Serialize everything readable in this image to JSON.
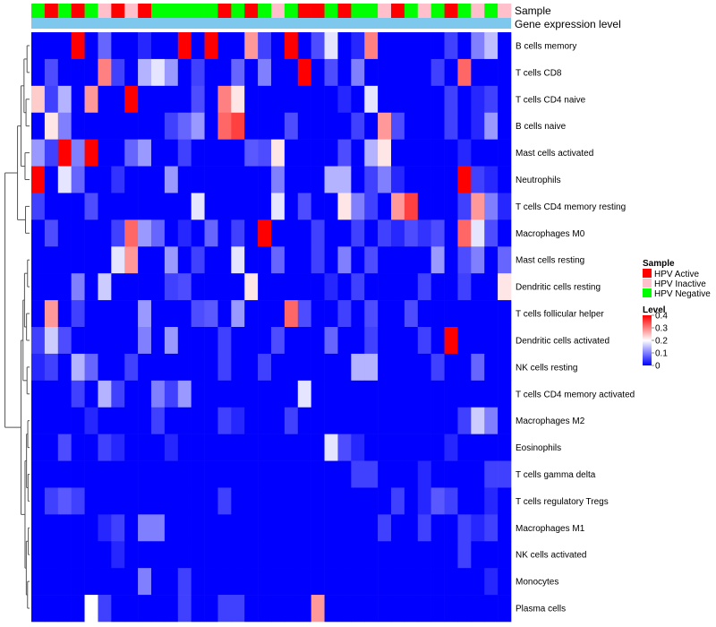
{
  "chart_data": {
    "type": "heatmap",
    "annotation_rows": {
      "sample_label": "Sample",
      "gene_label": "Gene expression level"
    },
    "sample_groups": [
      "HPV Active",
      "HPV Inactive",
      "HPV Negative"
    ],
    "sample_colors": [
      "#ff0000",
      "#ffc0cb",
      "#00ff00"
    ],
    "sample_annotation": [
      2,
      0,
      2,
      0,
      2,
      1,
      0,
      1,
      0,
      2,
      2,
      2,
      2,
      2,
      0,
      2,
      0,
      2,
      1,
      2,
      0,
      0,
      2,
      0,
      2,
      2,
      1,
      0,
      2,
      1,
      2,
      0,
      2,
      1,
      2,
      1
    ],
    "gene_level_color": "#7ec8ee",
    "rows": [
      "B cells memory",
      "T cells CD8",
      "T cells CD4 naive",
      "B cells naive",
      "Mast cells activated",
      "Neutrophils",
      "T cells CD4 memory resting",
      "Macrophages M0",
      "Mast cells resting",
      "Dendritic cells resting",
      "T cells follicular helper",
      "Dendritic cells activated",
      "NK cells resting",
      "T cells CD4 memory activated",
      "Macrophages M2",
      "Eosinophils",
      "T cells gamma delta",
      "T cells regulatory  Tregs",
      "Macrophages M1",
      "NK cells activated",
      "Monocytes",
      "Plasma cells"
    ],
    "values": [
      [
        0.0,
        0.0,
        0.0,
        0.4,
        0.0,
        0.08,
        0.0,
        0.0,
        0.03,
        0.0,
        0.0,
        0.4,
        0.0,
        0.4,
        0.0,
        0.0,
        0.28,
        0.05,
        0.0,
        0.4,
        0.0,
        0.06,
        0.18,
        0.0,
        0.03,
        0.3,
        0.0,
        0.0,
        0.0,
        0.0,
        0.0,
        0.05,
        0.0,
        0.1,
        0.15,
        0.0
      ],
      [
        0.0,
        0.06,
        0.0,
        0.0,
        0.0,
        0.3,
        0.05,
        0.0,
        0.14,
        0.18,
        0.12,
        0.0,
        0.05,
        0.0,
        0.0,
        0.08,
        0.0,
        0.1,
        0.0,
        0.0,
        0.4,
        0.0,
        0.06,
        0.0,
        0.1,
        0.0,
        0.0,
        0.0,
        0.0,
        0.0,
        0.05,
        0.0,
        0.32,
        0.0,
        0.0,
        0.0
      ],
      [
        0.24,
        0.05,
        0.14,
        0.0,
        0.28,
        0.0,
        0.0,
        0.4,
        0.0,
        0.0,
        0.0,
        0.0,
        0.06,
        0.0,
        0.3,
        0.22,
        0.0,
        0.0,
        0.0,
        0.0,
        0.0,
        0.0,
        0.0,
        0.03,
        0.0,
        0.18,
        0.0,
        0.0,
        0.0,
        0.0,
        0.0,
        0.05,
        0.0,
        0.03,
        0.05,
        0.0
      ],
      [
        0.0,
        0.22,
        0.1,
        0.0,
        0.0,
        0.0,
        0.0,
        0.0,
        0.0,
        0.0,
        0.05,
        0.08,
        0.12,
        0.0,
        0.32,
        0.35,
        0.0,
        0.0,
        0.0,
        0.06,
        0.0,
        0.0,
        0.0,
        0.0,
        0.05,
        0.0,
        0.28,
        0.06,
        0.0,
        0.0,
        0.0,
        0.05,
        0.0,
        0.03,
        0.12,
        0.0
      ],
      [
        0.12,
        0.05,
        0.4,
        0.1,
        0.4,
        0.0,
        0.0,
        0.08,
        0.12,
        0.0,
        0.0,
        0.05,
        0.0,
        0.0,
        0.0,
        0.0,
        0.07,
        0.06,
        0.22,
        0.0,
        0.0,
        0.0,
        0.0,
        0.06,
        0.0,
        0.14,
        0.22,
        0.0,
        0.0,
        0.0,
        0.0,
        0.0,
        0.03,
        0.0,
        0.0,
        0.0
      ],
      [
        0.4,
        0.0,
        0.18,
        0.08,
        0.0,
        0.0,
        0.04,
        0.0,
        0.0,
        0.0,
        0.12,
        0.0,
        0.0,
        0.0,
        0.0,
        0.0,
        0.0,
        0.0,
        0.1,
        0.0,
        0.0,
        0.0,
        0.14,
        0.14,
        0.0,
        0.05,
        0.1,
        0.03,
        0.0,
        0.0,
        0.0,
        0.0,
        0.4,
        0.05,
        0.03,
        0.0
      ],
      [
        0.05,
        0.0,
        0.0,
        0.0,
        0.06,
        0.0,
        0.0,
        0.0,
        0.0,
        0.0,
        0.0,
        0.0,
        0.18,
        0.0,
        0.0,
        0.0,
        0.0,
        0.0,
        0.18,
        0.0,
        0.06,
        0.0,
        0.0,
        0.22,
        0.1,
        0.05,
        0.0,
        0.28,
        0.35,
        0.0,
        0.0,
        0.0,
        0.05,
        0.28,
        0.1,
        0.03
      ],
      [
        0.0,
        0.06,
        0.0,
        0.0,
        0.0,
        0.0,
        0.05,
        0.32,
        0.12,
        0.08,
        0.0,
        0.03,
        0.0,
        0.08,
        0.0,
        0.05,
        0.0,
        0.4,
        0.0,
        0.0,
        0.0,
        0.05,
        0.0,
        0.0,
        0.05,
        0.0,
        0.05,
        0.03,
        0.06,
        0.04,
        0.06,
        0.0,
        0.32,
        0.18,
        0.06,
        0.0
      ],
      [
        0.0,
        0.0,
        0.0,
        0.0,
        0.0,
        0.0,
        0.18,
        0.28,
        0.0,
        0.0,
        0.12,
        0.0,
        0.05,
        0.0,
        0.0,
        0.18,
        0.0,
        0.0,
        0.08,
        0.0,
        0.0,
        0.05,
        0.0,
        0.1,
        0.0,
        0.06,
        0.0,
        0.0,
        0.0,
        0.0,
        0.12,
        0.0,
        0.06,
        0.1,
        0.0,
        0.08
      ],
      [
        0.0,
        0.0,
        0.0,
        0.1,
        0.0,
        0.16,
        0.0,
        0.0,
        0.0,
        0.0,
        0.05,
        0.06,
        0.0,
        0.0,
        0.0,
        0.0,
        0.22,
        0.0,
        0.0,
        0.0,
        0.0,
        0.0,
        0.03,
        0.0,
        0.05,
        0.0,
        0.0,
        0.0,
        0.0,
        0.05,
        0.0,
        0.0,
        0.05,
        0.0,
        0.0,
        0.22
      ],
      [
        0.0,
        0.28,
        0.0,
        0.05,
        0.0,
        0.0,
        0.0,
        0.0,
        0.12,
        0.0,
        0.0,
        0.0,
        0.06,
        0.07,
        0.0,
        0.12,
        0.0,
        0.0,
        0.0,
        0.32,
        0.06,
        0.0,
        0.0,
        0.05,
        0.0,
        0.06,
        0.0,
        0.0,
        0.06,
        0.0,
        0.0,
        0.0,
        0.0,
        0.0,
        0.0,
        0.0
      ],
      [
        0.05,
        0.16,
        0.06,
        0.0,
        0.0,
        0.0,
        0.0,
        0.0,
        0.1,
        0.0,
        0.12,
        0.0,
        0.0,
        0.0,
        0.05,
        0.0,
        0.0,
        0.0,
        0.06,
        0.0,
        0.0,
        0.0,
        0.08,
        0.0,
        0.0,
        0.05,
        0.0,
        0.0,
        0.0,
        0.05,
        0.0,
        0.4,
        0.0,
        0.0,
        0.0,
        0.0
      ],
      [
        0.03,
        0.05,
        0.0,
        0.14,
        0.08,
        0.0,
        0.0,
        0.05,
        0.0,
        0.0,
        0.0,
        0.0,
        0.0,
        0.0,
        0.05,
        0.0,
        0.0,
        0.05,
        0.0,
        0.0,
        0.0,
        0.0,
        0.0,
        0.0,
        0.14,
        0.14,
        0.0,
        0.0,
        0.0,
        0.0,
        0.05,
        0.0,
        0.0,
        0.08,
        0.0,
        0.0
      ],
      [
        0.0,
        0.0,
        0.0,
        0.05,
        0.0,
        0.14,
        0.05,
        0.0,
        0.0,
        0.1,
        0.05,
        0.12,
        0.0,
        0.0,
        0.0,
        0.0,
        0.0,
        0.0,
        0.0,
        0.0,
        0.18,
        0.0,
        0.0,
        0.0,
        0.0,
        0.0,
        0.0,
        0.0,
        0.0,
        0.0,
        0.0,
        0.0,
        0.0,
        0.0,
        0.0,
        0.0
      ],
      [
        0.0,
        0.0,
        0.0,
        0.0,
        0.03,
        0.0,
        0.0,
        0.0,
        0.0,
        0.05,
        0.0,
        0.0,
        0.0,
        0.0,
        0.05,
        0.03,
        0.0,
        0.0,
        0.0,
        0.05,
        0.0,
        0.0,
        0.0,
        0.0,
        0.0,
        0.0,
        0.0,
        0.0,
        0.0,
        0.0,
        0.0,
        0.0,
        0.05,
        0.16,
        0.1,
        0.0
      ],
      [
        0.0,
        0.0,
        0.06,
        0.0,
        0.0,
        0.05,
        0.03,
        0.0,
        0.0,
        0.0,
        0.03,
        0.0,
        0.0,
        0.0,
        0.0,
        0.0,
        0.0,
        0.0,
        0.0,
        0.0,
        0.0,
        0.0,
        0.18,
        0.06,
        0.03,
        0.0,
        0.0,
        0.0,
        0.0,
        0.0,
        0.0,
        0.03,
        0.0,
        0.0,
        0.0,
        0.0
      ],
      [
        0.0,
        0.0,
        0.0,
        0.0,
        0.0,
        0.0,
        0.0,
        0.0,
        0.0,
        0.0,
        0.0,
        0.0,
        0.0,
        0.0,
        0.0,
        0.0,
        0.0,
        0.0,
        0.0,
        0.0,
        0.0,
        0.0,
        0.0,
        0.0,
        0.05,
        0.05,
        0.0,
        0.0,
        0.0,
        0.03,
        0.0,
        0.0,
        0.0,
        0.0,
        0.05,
        0.05
      ],
      [
        0.0,
        0.05,
        0.07,
        0.05,
        0.0,
        0.0,
        0.0,
        0.0,
        0.0,
        0.0,
        0.0,
        0.0,
        0.0,
        0.0,
        0.05,
        0.0,
        0.0,
        0.0,
        0.0,
        0.0,
        0.0,
        0.0,
        0.0,
        0.0,
        0.0,
        0.0,
        0.0,
        0.05,
        0.0,
        0.03,
        0.07,
        0.05,
        0.0,
        0.0,
        0.03,
        0.0
      ],
      [
        0.0,
        0.0,
        0.0,
        0.0,
        0.0,
        0.03,
        0.05,
        0.0,
        0.1,
        0.1,
        0.0,
        0.0,
        0.0,
        0.0,
        0.0,
        0.0,
        0.0,
        0.0,
        0.0,
        0.0,
        0.0,
        0.0,
        0.0,
        0.0,
        0.0,
        0.0,
        0.05,
        0.0,
        0.0,
        0.05,
        0.0,
        0.0,
        0.05,
        0.03,
        0.05,
        0.0
      ],
      [
        0.0,
        0.0,
        0.0,
        0.0,
        0.0,
        0.0,
        0.03,
        0.0,
        0.0,
        0.0,
        0.0,
        0.0,
        0.0,
        0.0,
        0.0,
        0.0,
        0.0,
        0.0,
        0.0,
        0.0,
        0.0,
        0.0,
        0.0,
        0.0,
        0.0,
        0.0,
        0.0,
        0.0,
        0.0,
        0.0,
        0.0,
        0.0,
        0.05,
        0.0,
        0.0,
        0.0
      ],
      [
        0.0,
        0.0,
        0.0,
        0.0,
        0.0,
        0.0,
        0.0,
        0.0,
        0.1,
        0.0,
        0.0,
        0.05,
        0.0,
        0.0,
        0.0,
        0.0,
        0.0,
        0.0,
        0.0,
        0.0,
        0.0,
        0.0,
        0.0,
        0.0,
        0.0,
        0.0,
        0.0,
        0.0,
        0.0,
        0.0,
        0.0,
        0.0,
        0.0,
        0.0,
        0.03,
        0.0
      ],
      [
        0.0,
        0.0,
        0.0,
        0.0,
        0.2,
        0.05,
        0.0,
        0.0,
        0.0,
        0.0,
        0.0,
        0.05,
        0.0,
        0.0,
        0.05,
        0.05,
        0.0,
        0.0,
        0.0,
        0.0,
        0.0,
        0.28,
        0.0,
        0.0,
        0.0,
        0.0,
        0.0,
        0.0,
        0.0,
        0.0,
        0.0,
        0.0,
        0.0,
        0.0,
        0.0,
        0.0
      ]
    ],
    "color_scale": {
      "min": 0,
      "max": 0.4,
      "stops": [
        {
          "value": 0,
          "color": "#0000ff"
        },
        {
          "value": 0.2,
          "color": "#ffffff"
        },
        {
          "value": 0.4,
          "color": "#ff0000"
        }
      ]
    },
    "legend": {
      "sample_title": "Sample",
      "level_title": "Level",
      "level_ticks": [
        "0.4",
        "0.3",
        "0.2",
        "0.1",
        "0"
      ],
      "placement": "right"
    }
  }
}
